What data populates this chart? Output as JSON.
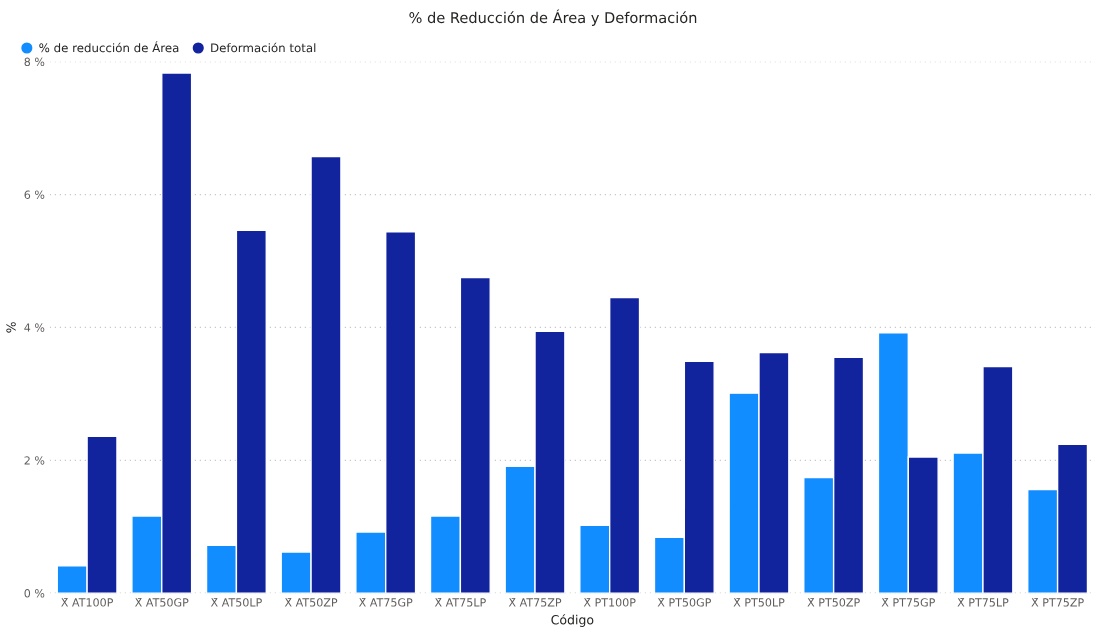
{
  "chart_data": {
    "type": "bar",
    "title": "% de Reducción de Área y Deformación",
    "xlabel": "Código",
    "ylabel": "%",
    "categories": [
      "X̄ AT100P",
      "X̄ AT50GP",
      "X̄ AT50LP",
      "X̄ AT50ZP",
      "X̄ AT75GP",
      "X̄ AT75LP",
      "X̄ AT75ZP",
      "X̄ PT100P",
      "X̄ PT50GP",
      "X̄ PT50LP",
      "X̄ PT50ZP",
      "X̄ PT75GP",
      "X̄ PT75LP",
      "X̄ PT75ZP"
    ],
    "series": [
      {
        "name": "% de reducción de Área",
        "color": "#118dff",
        "values": [
          0.41,
          1.16,
          0.72,
          0.62,
          0.92,
          1.16,
          1.91,
          1.02,
          0.84,
          3.01,
          1.74,
          3.92,
          2.11,
          1.56
        ]
      },
      {
        "name": "Deformación total",
        "color": "#12239e",
        "values": [
          2.36,
          7.83,
          5.46,
          6.57,
          5.44,
          4.75,
          3.94,
          4.45,
          3.49,
          3.62,
          3.55,
          2.05,
          3.41,
          2.24
        ]
      }
    ],
    "ylim": [
      0,
      8
    ],
    "yticks": [
      {
        "value": 0,
        "label": "0 %"
      },
      {
        "value": 2,
        "label": "2 %"
      },
      {
        "value": 4,
        "label": "4 %"
      },
      {
        "value": 6,
        "label": "6 %"
      },
      {
        "value": 8,
        "label": "8 %"
      }
    ],
    "grid": "y",
    "legend": "top left"
  }
}
